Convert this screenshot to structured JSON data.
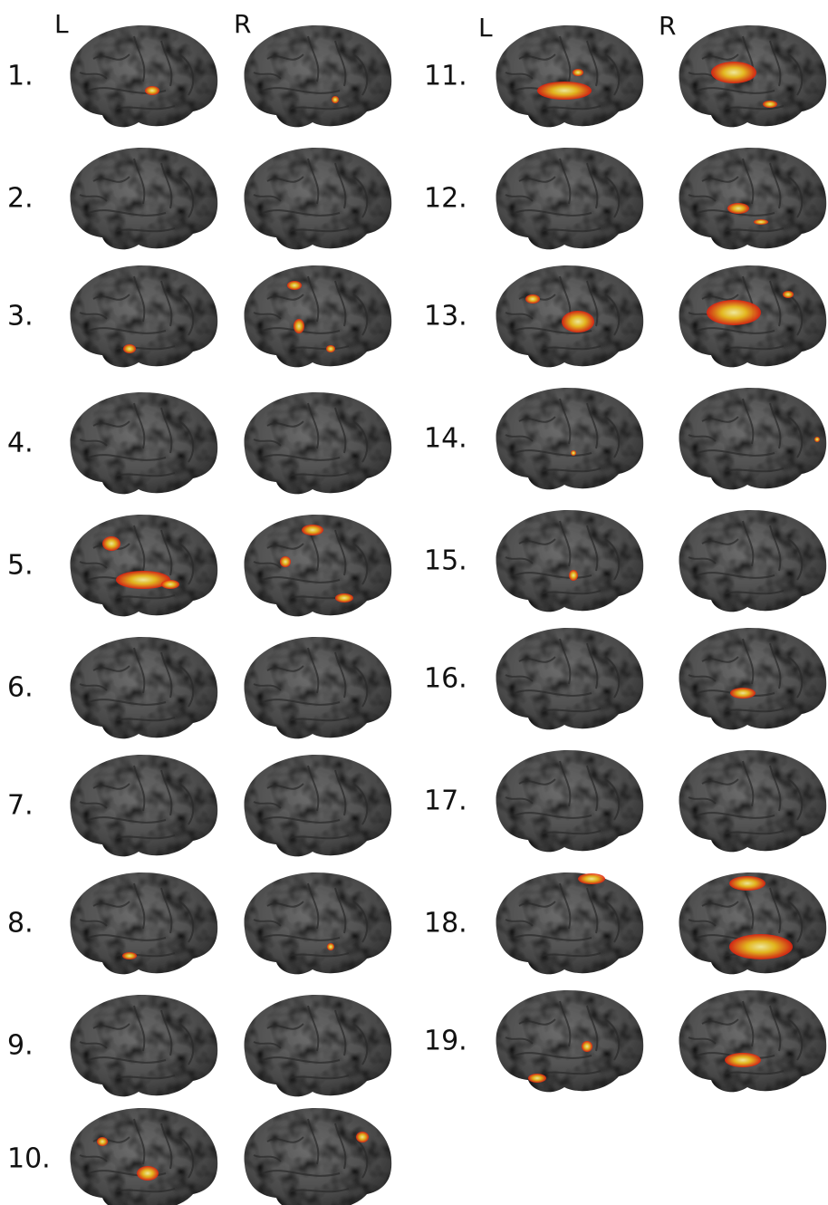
{
  "left_panel": {
    "hemispheres": [
      "L",
      "R"
    ],
    "labels": [
      "1.",
      "2.",
      "3.",
      "4.",
      "5.",
      "6.",
      "7.",
      "8.",
      "9.",
      "10."
    ]
  },
  "right_panel": {
    "hemispheres": [
      "L",
      "R"
    ],
    "labels": [
      "11.",
      "12.",
      "13.",
      "14.",
      "15.",
      "16.",
      "17.",
      "18.",
      "19."
    ]
  }
}
